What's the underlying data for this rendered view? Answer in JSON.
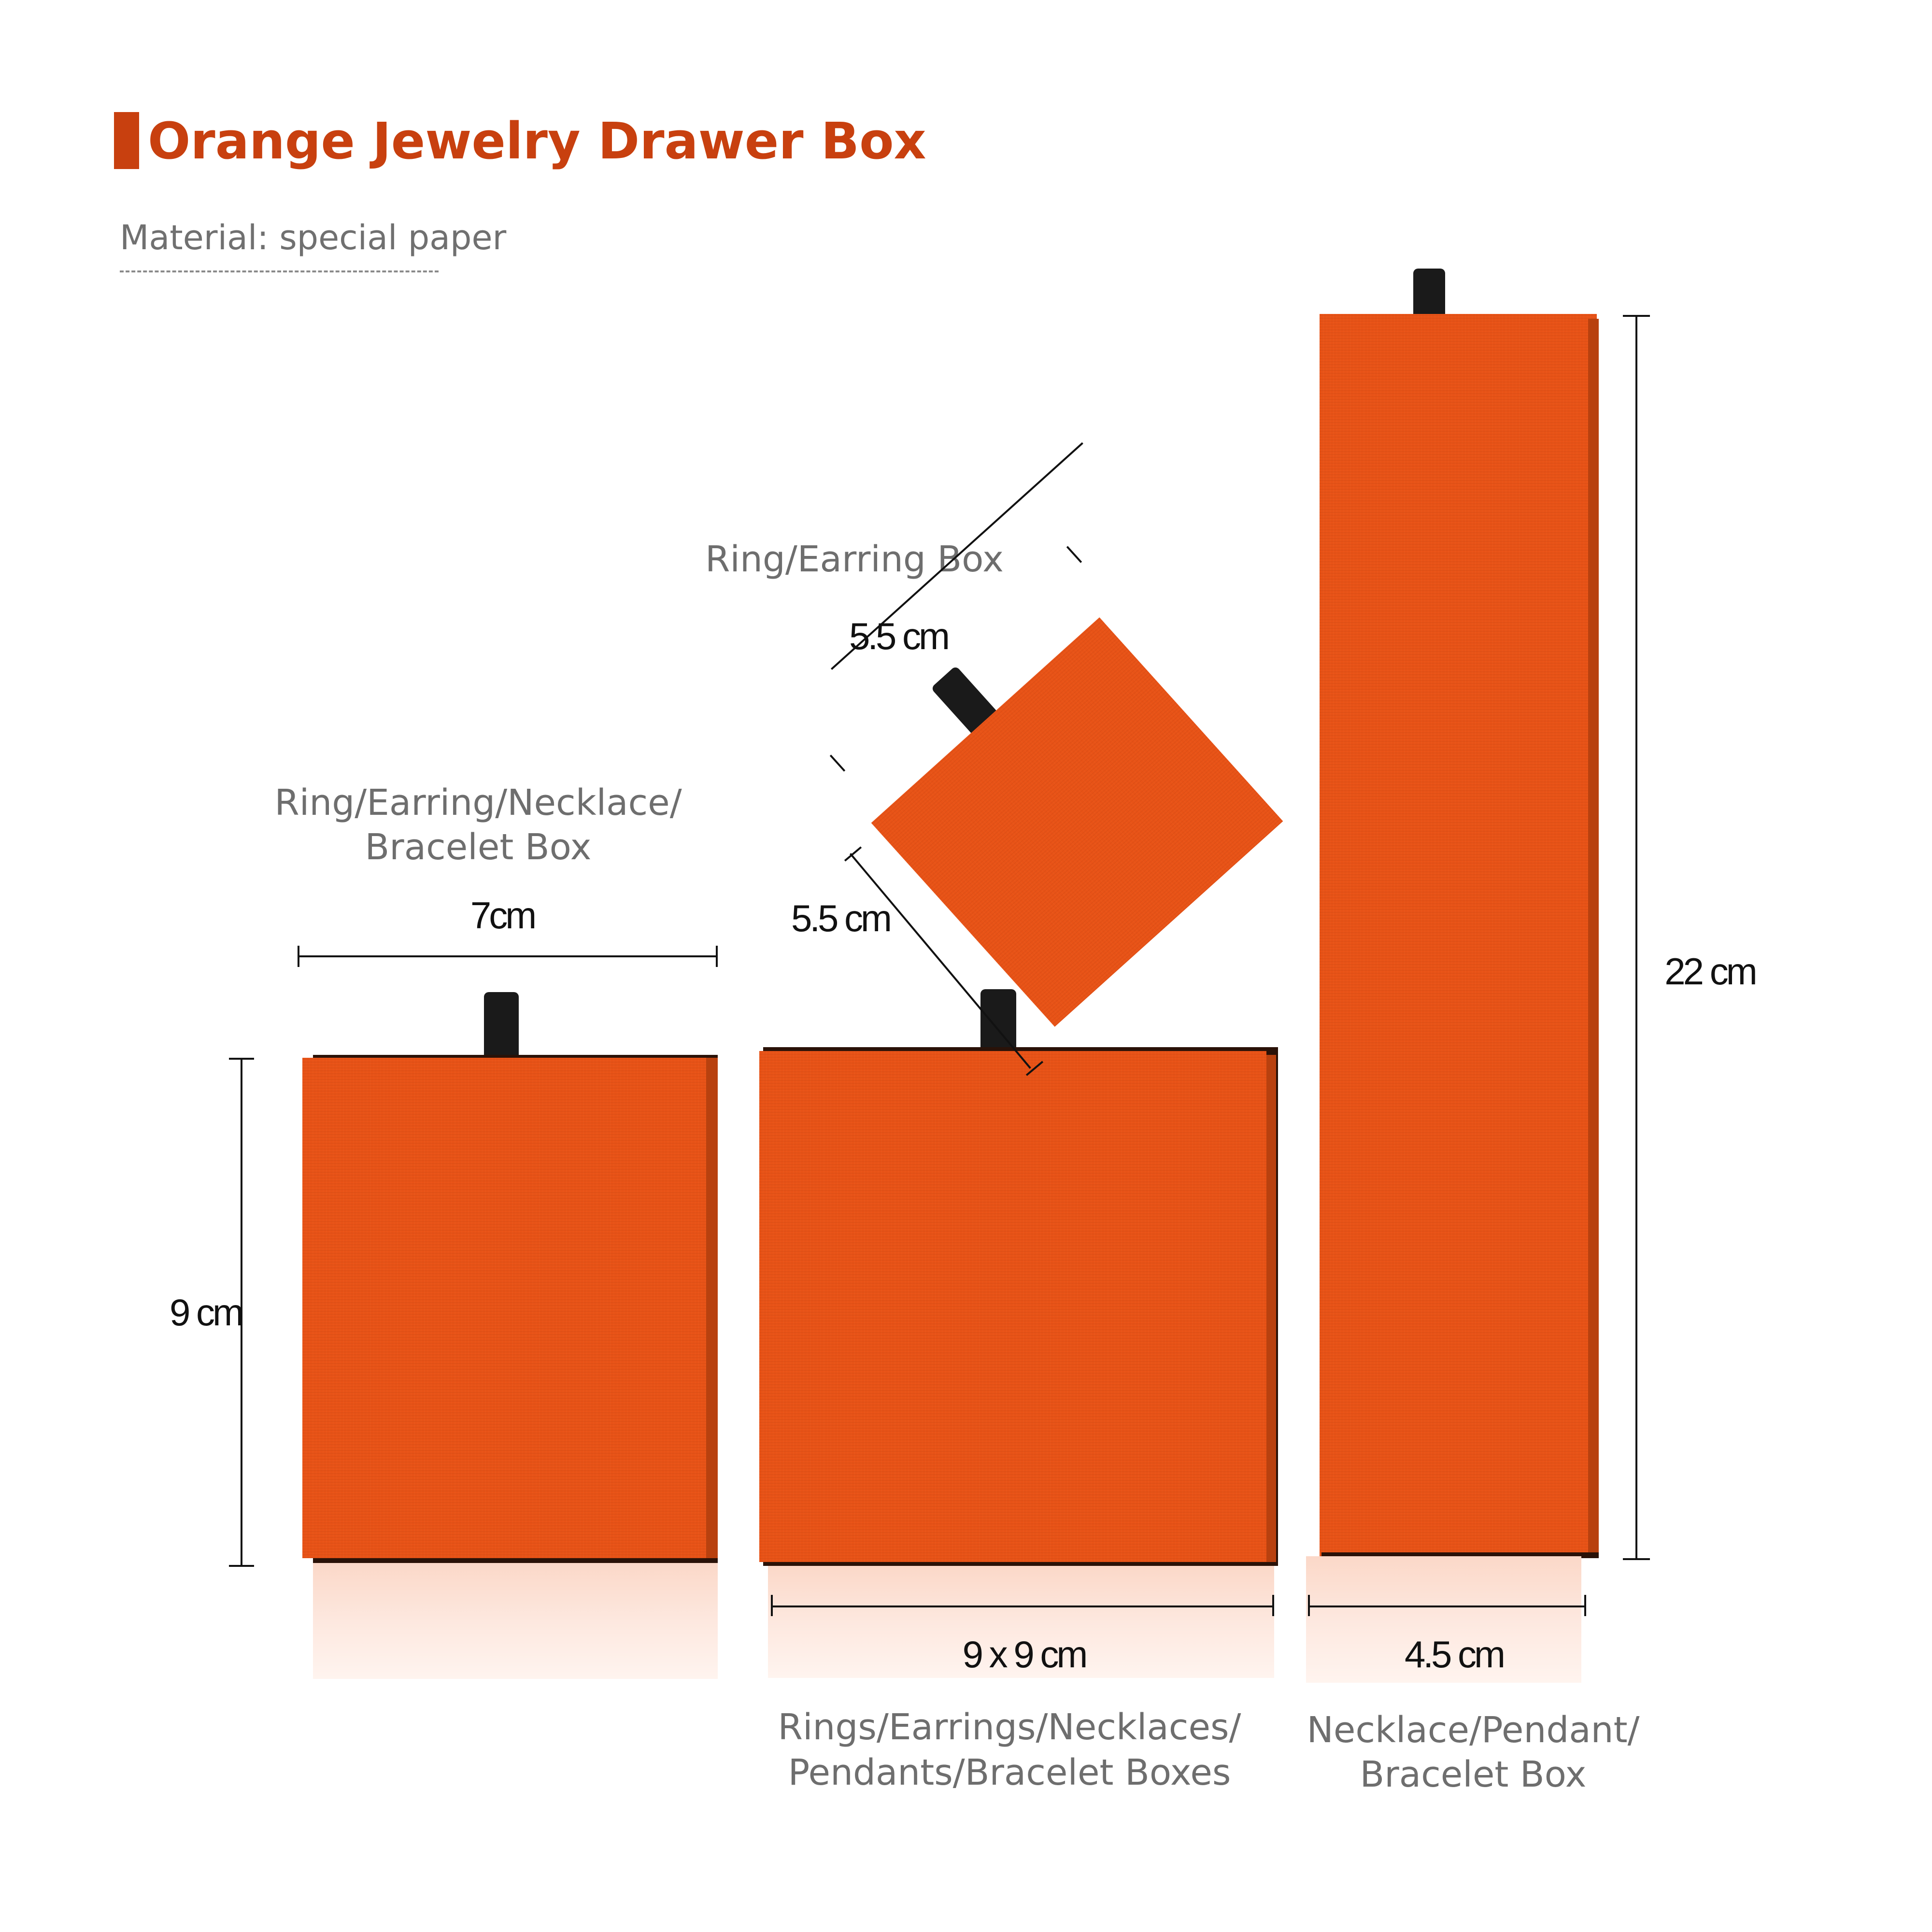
{
  "header": {
    "title": "Orange Jewelry Drawer Box",
    "material": "Material: special paper",
    "title_color": "#c8400f",
    "accent_color": "#c8400f"
  },
  "boxes": {
    "box_color": "#e85317",
    "tab_color": "#1a1a1a",
    "left": {
      "caption_line1": "Ring/Earring/Necklace/",
      "caption_line2": "Bracelet Box",
      "width_label": "7cm",
      "height_label": "9 cm"
    },
    "small": {
      "caption": "Ring/Earring Box",
      "width_label": "5.5 cm",
      "depth_label": "5.5 cm"
    },
    "middle": {
      "size_label": "9 x 9 cm",
      "caption_line1": "Rings/Earrings/Necklaces/",
      "caption_line2": "Pendants/Bracelet Boxes"
    },
    "tall": {
      "height_label": "22 cm",
      "width_label": "4.5 cm",
      "caption_line1": "Necklace/Pendant/",
      "caption_line2": "Bracelet Box"
    }
  }
}
